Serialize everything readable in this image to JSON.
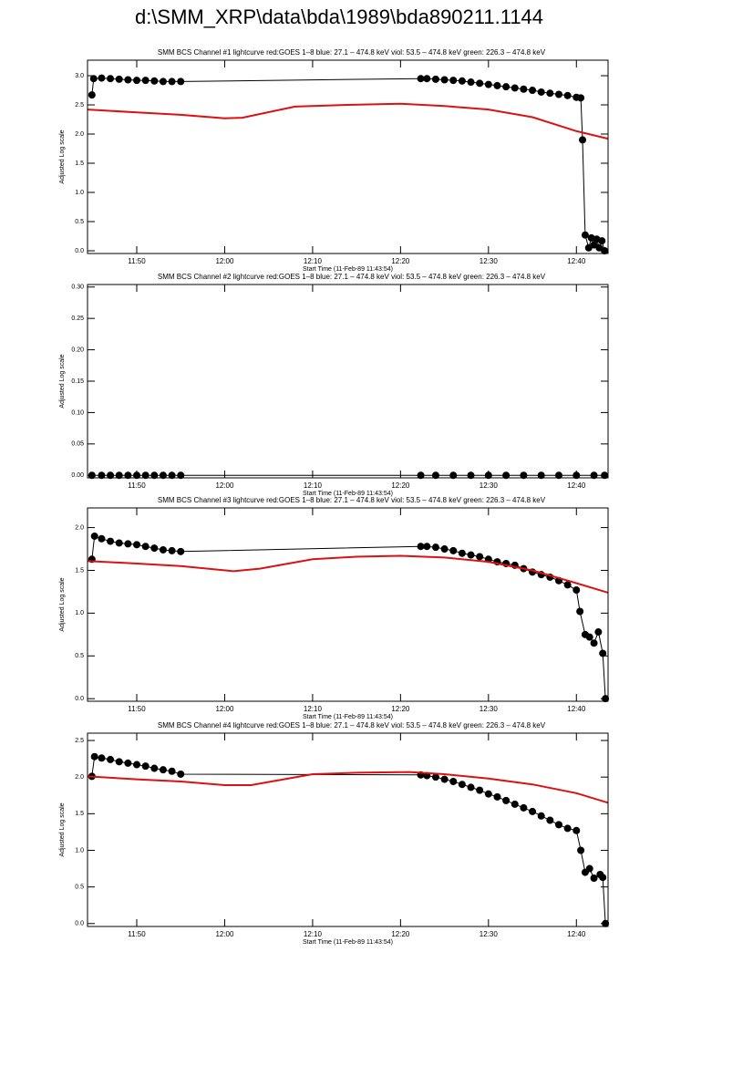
{
  "title": "d:\\SMM_XRP\\data\\bda\\1989\\bda890211.1144",
  "chart_data": [
    {
      "type": "line",
      "title": "SMM BCS Channel #1 lightcurve  red:GOES 1–8  blue: 27.1 – 474.8 keV  viol: 53.5 – 474.8 keV  green: 226.3 – 474.8 keV",
      "x_label": "Start Time (11-Feb-89 11:43:54)",
      "y_label": "Adjusted Log scale",
      "xlim": [
        704.4,
        763.6
      ],
      "xticks": [
        {
          "value": 710,
          "label": "11:50"
        },
        {
          "value": 720,
          "label": "12:00"
        },
        {
          "value": 730,
          "label": "12:10"
        },
        {
          "value": 740,
          "label": "12:20"
        },
        {
          "value": 750,
          "label": "12:30"
        },
        {
          "value": 760,
          "label": "12:40"
        }
      ],
      "ylim": [
        -0.047,
        3.266
      ],
      "yticks": [
        {
          "value": 0,
          "label": "0.0"
        },
        0.5,
        {
          "value": 1,
          "label": "1.0"
        },
        1.5,
        {
          "value": 2,
          "label": "2.0"
        },
        2.5,
        {
          "value": 3,
          "label": "3.0"
        }
      ],
      "series": [
        {
          "color": "#000000",
          "markers": true,
          "x": [
            704.9,
            705.1,
            706,
            707,
            708,
            709,
            710,
            711,
            712,
            713,
            714,
            715,
            742.3,
            743,
            744,
            745,
            746,
            747,
            748,
            749,
            750,
            751,
            752,
            753,
            754,
            755,
            756,
            757,
            758,
            759,
            760,
            760.5,
            760.7,
            761,
            761.4,
            761.7,
            762,
            762.3,
            762.6,
            762.9,
            763.2
          ],
          "values": [
            2.67,
            2.95,
            2.96,
            2.95,
            2.94,
            2.93,
            2.92,
            2.92,
            2.91,
            2.9,
            2.9,
            2.9,
            2.95,
            2.95,
            2.94,
            2.93,
            2.92,
            2.91,
            2.89,
            2.87,
            2.85,
            2.83,
            2.81,
            2.79,
            2.77,
            2.75,
            2.72,
            2.7,
            2.68,
            2.66,
            2.63,
            2.62,
            1.9,
            0.27,
            0.05,
            0.22,
            0.1,
            0.2,
            0.05,
            0.17,
            0
          ]
        },
        {
          "color": "#dd1111",
          "markers": false,
          "x": [
            704.4,
            710,
            715,
            720,
            722,
            728,
            734,
            740,
            745,
            750,
            755,
            760,
            763.6
          ],
          "values": [
            2.42,
            2.37,
            2.33,
            2.27,
            2.28,
            2.47,
            2.5,
            2.52,
            2.48,
            2.42,
            2.29,
            2.05,
            1.92
          ]
        }
      ]
    },
    {
      "type": "line",
      "title": "SMM BCS Channel #2 lightcurve  red:GOES 1–8  blue: 27.1 – 474.8 keV  viol: 53.5 – 474.8 keV  green: 226.3 – 474.8 keV",
      "x_label": "Start Time (11-Feb-89 11:43:54)",
      "y_label": "Adjusted Log scale",
      "xlim": [
        704.4,
        763.6
      ],
      "xticks": [
        {
          "value": 710,
          "label": "11:50"
        },
        {
          "value": 720,
          "label": "12:00"
        },
        {
          "value": 730,
          "label": "12:10"
        },
        {
          "value": 740,
          "label": "12:20"
        },
        {
          "value": 750,
          "label": "12:30"
        },
        {
          "value": 760,
          "label": "12:40"
        }
      ],
      "ylim": [
        -0.004,
        0.304
      ],
      "yticks": [
        {
          "value": 0,
          "label": "0.00"
        },
        0.05,
        {
          "value": 0.1,
          "label": "0.10"
        },
        0.15,
        {
          "value": 0.2,
          "label": "0.20"
        },
        0.25,
        {
          "value": 0.3,
          "label": "0.30"
        }
      ],
      "series": [
        {
          "color": "#000000",
          "markers": true,
          "x": [
            704.9,
            706,
            707,
            708,
            709,
            710,
            711,
            712,
            713,
            714,
            715,
            742.3,
            744,
            746,
            748,
            750,
            752,
            754,
            756,
            758,
            760,
            762,
            763.2
          ],
          "values": [
            0,
            0,
            0,
            0,
            0,
            0,
            0,
            0,
            0,
            0,
            0,
            0,
            0,
            0,
            0,
            0,
            0,
            0,
            0,
            0,
            0,
            0,
            0
          ]
        }
      ]
    },
    {
      "type": "line",
      "title": "SMM BCS Channel #3 lightcurve  red:GOES 1–8  blue: 27.1 – 474.8 keV  viol: 53.5 – 474.8 keV  green: 226.3 – 474.8 keV",
      "x_label": "Start Time (11-Feb-89 11:43:54)",
      "y_label": "Adjusted Log scale",
      "xlim": [
        704.4,
        763.6
      ],
      "xticks": [
        {
          "value": 710,
          "label": "11:50"
        },
        {
          "value": 720,
          "label": "12:00"
        },
        {
          "value": 730,
          "label": "12:10"
        },
        {
          "value": 740,
          "label": "12:20"
        },
        {
          "value": 750,
          "label": "12:30"
        },
        {
          "value": 760,
          "label": "12:40"
        }
      ],
      "ylim": [
        -0.03,
        2.23
      ],
      "yticks": [
        {
          "value": 0,
          "label": "0.0"
        },
        0.5,
        {
          "value": 1,
          "label": "1.0"
        },
        1.5,
        {
          "value": 2,
          "label": "2.0"
        }
      ],
      "series": [
        {
          "color": "#000000",
          "markers": true,
          "x": [
            704.9,
            705.2,
            706,
            707,
            708,
            709,
            710,
            711,
            712,
            713,
            714,
            715,
            742.3,
            743,
            744,
            745,
            746,
            747,
            748,
            749,
            750,
            751,
            752,
            753,
            754,
            755,
            756,
            757,
            758,
            759,
            760,
            760.4,
            761,
            761.5,
            762,
            762.5,
            763,
            763.3
          ],
          "values": [
            1.63,
            1.9,
            1.87,
            1.84,
            1.82,
            1.81,
            1.8,
            1.78,
            1.76,
            1.74,
            1.73,
            1.72,
            1.78,
            1.78,
            1.77,
            1.75,
            1.73,
            1.7,
            1.68,
            1.66,
            1.63,
            1.6,
            1.58,
            1.56,
            1.52,
            1.48,
            1.45,
            1.42,
            1.38,
            1.33,
            1.27,
            1.02,
            0.75,
            0.72,
            0.65,
            0.78,
            0.53,
            0
          ]
        },
        {
          "color": "#dd1111",
          "markers": false,
          "x": [
            704.4,
            710,
            715,
            721,
            724,
            730,
            735,
            740,
            745,
            750,
            755,
            760,
            763.6
          ],
          "values": [
            1.61,
            1.58,
            1.55,
            1.49,
            1.52,
            1.63,
            1.66,
            1.67,
            1.65,
            1.6,
            1.5,
            1.35,
            1.24
          ]
        }
      ]
    },
    {
      "type": "line",
      "title": "SMM BCS Channel #4 lightcurve  red:GOES 1–8  blue: 27.1 – 474.8 keV  viol: 53.5 – 474.8 keV  green: 226.3 – 474.8 keV",
      "x_label": "Start Time (11-Feb-89 11:43:54)",
      "y_label": "Adjusted Log scale",
      "xlim": [
        704.4,
        763.6
      ],
      "xticks": [
        {
          "value": 710,
          "label": "11:50"
        },
        {
          "value": 720,
          "label": "12:00"
        },
        {
          "value": 730,
          "label": "12:10"
        },
        {
          "value": 740,
          "label": "12:20"
        },
        {
          "value": 750,
          "label": "12:30"
        },
        {
          "value": 760,
          "label": "12:40"
        }
      ],
      "ylim": [
        -0.04,
        2.6
      ],
      "yticks": [
        {
          "value": 0,
          "label": "0.0"
        },
        0.5,
        {
          "value": 1,
          "label": "1.0"
        },
        1.5,
        {
          "value": 2,
          "label": "2.0"
        },
        2.5
      ],
      "series": [
        {
          "color": "#000000",
          "markers": true,
          "x": [
            704.9,
            705.2,
            706,
            707,
            708,
            709,
            710,
            711,
            712,
            713,
            714,
            715,
            742.3,
            743,
            744,
            745,
            746,
            747,
            748,
            749,
            750,
            751,
            752,
            753,
            754,
            755,
            756,
            757,
            758,
            759,
            760,
            760.5,
            761,
            761.5,
            762,
            762.7,
            763,
            763.3
          ],
          "values": [
            2.01,
            2.28,
            2.26,
            2.24,
            2.21,
            2.19,
            2.17,
            2.15,
            2.12,
            2.1,
            2.08,
            2.04,
            2.03,
            2.02,
            2.0,
            1.97,
            1.94,
            1.9,
            1.86,
            1.82,
            1.77,
            1.73,
            1.68,
            1.63,
            1.58,
            1.53,
            1.47,
            1.41,
            1.35,
            1.3,
            1.27,
            1.0,
            0.7,
            0.75,
            0.62,
            0.67,
            0.63,
            0
          ]
        },
        {
          "color": "#dd1111",
          "markers": false,
          "x": [
            704.4,
            710,
            715,
            720,
            723,
            730,
            735,
            741,
            745,
            750,
            755,
            760,
            763.6
          ],
          "values": [
            2.01,
            1.97,
            1.94,
            1.89,
            1.89,
            2.04,
            2.06,
            2.07,
            2.04,
            1.98,
            1.9,
            1.78,
            1.65
          ]
        }
      ]
    }
  ]
}
